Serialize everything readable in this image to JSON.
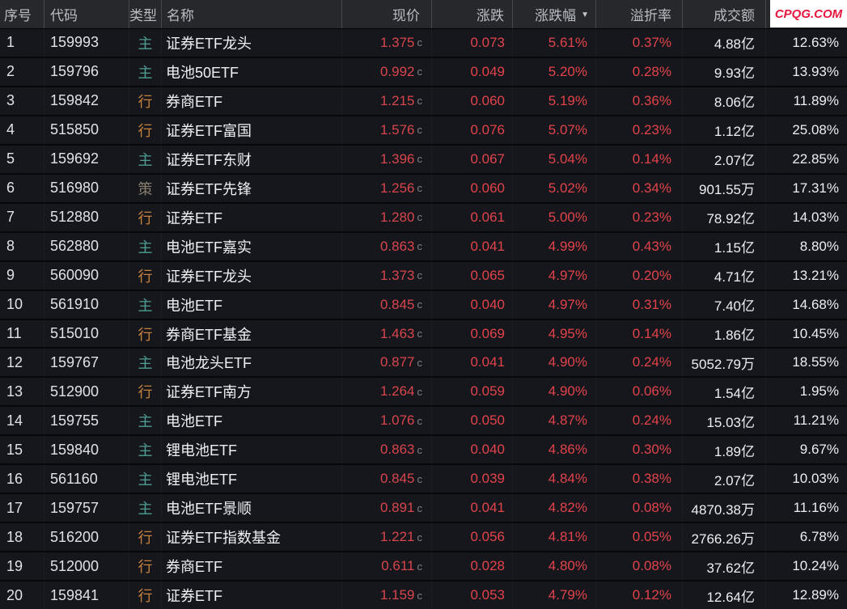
{
  "header": {
    "columns": [
      "序号",
      "代码",
      "类型",
      "名称",
      "现价",
      "涨跌",
      "涨跌幅",
      "溢折率",
      "成交额",
      ""
    ],
    "sort_column": "涨跌幅",
    "sort_icon": "▼",
    "logo_text": "CPQG.COM"
  },
  "colors": {
    "accent_red": "#e2434b",
    "price_red": "#d8454d",
    "logo_red": "#e5173f",
    "header_bg": "#27282c",
    "row_bg": "#15171d",
    "type": {
      "主": "#4f9d93",
      "行": "#c6813c",
      "策": "#8a7e6e"
    }
  },
  "price_suffix": "c",
  "rows": [
    {
      "index": "1",
      "code": "159993",
      "type": "主",
      "name": "证券ETF龙头",
      "price": "1.375",
      "change": "0.073",
      "change_pct": "5.61%",
      "premium": "0.37%",
      "turnover": "4.88亿",
      "rate": "12.63%"
    },
    {
      "index": "2",
      "code": "159796",
      "type": "主",
      "name": "电池50ETF",
      "price": "0.992",
      "change": "0.049",
      "change_pct": "5.20%",
      "premium": "0.28%",
      "turnover": "9.93亿",
      "rate": "13.93%"
    },
    {
      "index": "3",
      "code": "159842",
      "type": "行",
      "name": "券商ETF",
      "price": "1.215",
      "change": "0.060",
      "change_pct": "5.19%",
      "premium": "0.36%",
      "turnover": "8.06亿",
      "rate": "11.89%"
    },
    {
      "index": "4",
      "code": "515850",
      "type": "行",
      "name": "证券ETF富国",
      "price": "1.576",
      "change": "0.076",
      "change_pct": "5.07%",
      "premium": "0.23%",
      "turnover": "1.12亿",
      "rate": "25.08%"
    },
    {
      "index": "5",
      "code": "159692",
      "type": "主",
      "name": "证券ETF东财",
      "price": "1.396",
      "change": "0.067",
      "change_pct": "5.04%",
      "premium": "0.14%",
      "turnover": "2.07亿",
      "rate": "22.85%"
    },
    {
      "index": "6",
      "code": "516980",
      "type": "策",
      "name": "证券ETF先锋",
      "price": "1.256",
      "change": "0.060",
      "change_pct": "5.02%",
      "premium": "0.34%",
      "turnover": "901.55万",
      "rate": "17.31%"
    },
    {
      "index": "7",
      "code": "512880",
      "type": "行",
      "name": "证券ETF",
      "price": "1.280",
      "change": "0.061",
      "change_pct": "5.00%",
      "premium": "0.23%",
      "turnover": "78.92亿",
      "rate": "14.03%"
    },
    {
      "index": "8",
      "code": "562880",
      "type": "主",
      "name": "电池ETF嘉实",
      "price": "0.863",
      "change": "0.041",
      "change_pct": "4.99%",
      "premium": "0.43%",
      "turnover": "1.15亿",
      "rate": "8.80%"
    },
    {
      "index": "9",
      "code": "560090",
      "type": "行",
      "name": "证券ETF龙头",
      "price": "1.373",
      "change": "0.065",
      "change_pct": "4.97%",
      "premium": "0.20%",
      "turnover": "4.71亿",
      "rate": "13.21%"
    },
    {
      "index": "10",
      "code": "561910",
      "type": "主",
      "name": "电池ETF",
      "price": "0.845",
      "change": "0.040",
      "change_pct": "4.97%",
      "premium": "0.31%",
      "turnover": "7.40亿",
      "rate": "14.68%"
    },
    {
      "index": "11",
      "code": "515010",
      "type": "行",
      "name": "券商ETF基金",
      "price": "1.463",
      "change": "0.069",
      "change_pct": "4.95%",
      "premium": "0.14%",
      "turnover": "1.86亿",
      "rate": "10.45%"
    },
    {
      "index": "12",
      "code": "159767",
      "type": "主",
      "name": "电池龙头ETF",
      "price": "0.877",
      "change": "0.041",
      "change_pct": "4.90%",
      "premium": "0.24%",
      "turnover": "5052.79万",
      "rate": "18.55%"
    },
    {
      "index": "13",
      "code": "512900",
      "type": "行",
      "name": "证券ETF南方",
      "price": "1.264",
      "change": "0.059",
      "change_pct": "4.90%",
      "premium": "0.06%",
      "turnover": "1.54亿",
      "rate": "1.95%"
    },
    {
      "index": "14",
      "code": "159755",
      "type": "主",
      "name": "电池ETF",
      "price": "1.076",
      "change": "0.050",
      "change_pct": "4.87%",
      "premium": "0.24%",
      "turnover": "15.03亿",
      "rate": "11.21%"
    },
    {
      "index": "15",
      "code": "159840",
      "type": "主",
      "name": "锂电池ETF",
      "price": "0.863",
      "change": "0.040",
      "change_pct": "4.86%",
      "premium": "0.30%",
      "turnover": "1.89亿",
      "rate": "9.67%"
    },
    {
      "index": "16",
      "code": "561160",
      "type": "主",
      "name": "锂电池ETF",
      "price": "0.845",
      "change": "0.039",
      "change_pct": "4.84%",
      "premium": "0.38%",
      "turnover": "2.07亿",
      "rate": "10.03%"
    },
    {
      "index": "17",
      "code": "159757",
      "type": "主",
      "name": "电池ETF景顺",
      "price": "0.891",
      "change": "0.041",
      "change_pct": "4.82%",
      "premium": "0.08%",
      "turnover": "4870.38万",
      "rate": "11.16%"
    },
    {
      "index": "18",
      "code": "516200",
      "type": "行",
      "name": "证券ETF指数基金",
      "price": "1.221",
      "change": "0.056",
      "change_pct": "4.81%",
      "premium": "0.05%",
      "turnover": "2766.26万",
      "rate": "6.78%"
    },
    {
      "index": "19",
      "code": "512000",
      "type": "行",
      "name": "券商ETF",
      "price": "0.611",
      "change": "0.028",
      "change_pct": "4.80%",
      "premium": "0.08%",
      "turnover": "37.62亿",
      "rate": "10.24%"
    },
    {
      "index": "20",
      "code": "159841",
      "type": "行",
      "name": "证券ETF",
      "price": "1.159",
      "change": "0.053",
      "change_pct": "4.79%",
      "premium": "0.12%",
      "turnover": "12.64亿",
      "rate": "12.89%"
    }
  ]
}
